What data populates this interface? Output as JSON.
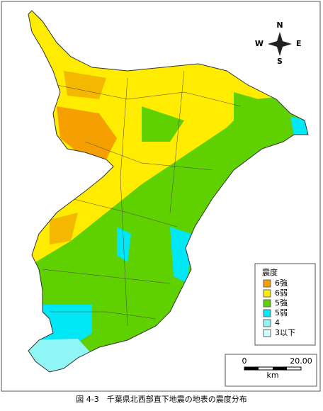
{
  "compass": {
    "north": "N",
    "south": "S",
    "east": "E",
    "west": "W"
  },
  "legend": {
    "title": "震度",
    "items": [
      {
        "label": "6強",
        "color": "#f5a000"
      },
      {
        "label": "6弱",
        "color": "#ffec00"
      },
      {
        "label": "5強",
        "color": "#5fd000"
      },
      {
        "label": "5弱",
        "color": "#00e8f5"
      },
      {
        "label": "4",
        "color": "#8ff5f5"
      },
      {
        "label": "3以下",
        "color": "#cffcfc"
      }
    ]
  },
  "scale": {
    "start": "0",
    "end": "20.00",
    "unit": "km"
  },
  "caption": "図 4-3　千葉県北西部直下地震の地表の震度分布"
}
